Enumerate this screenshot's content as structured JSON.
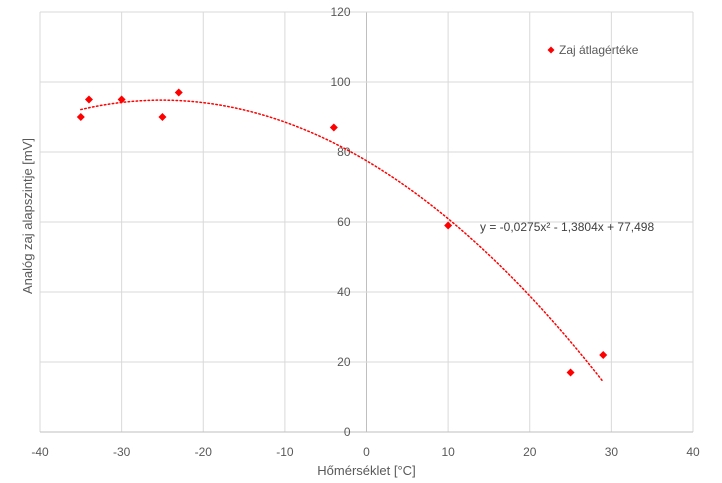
{
  "chart_data": {
    "type": "scatter",
    "title": "",
    "xlabel": "Hőmérséklet [°C]",
    "ylabel": "Analóg zaj alapszintje [mV]",
    "xlim": [
      -40,
      40
    ],
    "ylim": [
      0,
      120
    ],
    "xticks": [
      -40,
      -30,
      -20,
      -10,
      0,
      10,
      20,
      30,
      40
    ],
    "yticks": [
      0,
      20,
      40,
      60,
      80,
      100,
      120
    ],
    "grid": true,
    "legend_position": "top-right",
    "series": [
      {
        "name": "Zaj átlagértéke",
        "color": "#ff0000",
        "marker": "diamond",
        "points": [
          {
            "x": -35,
            "y": 90
          },
          {
            "x": -34,
            "y": 95
          },
          {
            "x": -30,
            "y": 95
          },
          {
            "x": -25,
            "y": 90
          },
          {
            "x": -23,
            "y": 97
          },
          {
            "x": -4,
            "y": 87
          },
          {
            "x": 10,
            "y": 59
          },
          {
            "x": 25,
            "y": 17
          },
          {
            "x": 29,
            "y": 22
          }
        ]
      }
    ],
    "trendline": {
      "type": "polynomial",
      "order": 2,
      "coefficients": [
        -0.0275,
        -1.3804,
        77.498
      ],
      "x_range": [
        -35,
        29
      ],
      "style": "dotted",
      "color": "#ff0000",
      "equation_label": "y = -0,0275x² - 1,3804x + 77,498"
    }
  }
}
